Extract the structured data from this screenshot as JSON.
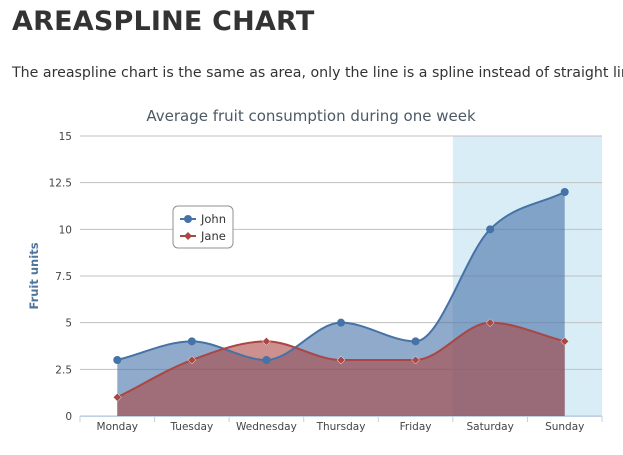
{
  "page": {
    "title": "AREASPLINE CHART",
    "description": "The areaspline chart is the same as area, only the line is a spline instead of straight lines."
  },
  "chart_data": {
    "type": "area",
    "subtype": "spline",
    "title": "Average fruit consumption during one week",
    "xlabel": "",
    "ylabel": "Fruit units",
    "categories": [
      "Monday",
      "Tuesday",
      "Wednesday",
      "Thursday",
      "Friday",
      "Saturday",
      "Sunday"
    ],
    "y_ticks": [
      0,
      2.5,
      5,
      7.5,
      10,
      12.5,
      15
    ],
    "y_tick_labels": [
      "0",
      "2.5",
      "5",
      "7.5",
      "10",
      "12.5",
      "15"
    ],
    "ylim": [
      0,
      15
    ],
    "grid": true,
    "legend_position": "top-left",
    "plot_band": {
      "from_category": "Saturday",
      "to_category": "Sunday",
      "color": "#d9edf7"
    },
    "series": [
      {
        "name": "John",
        "values": [
          3,
          4,
          3,
          5,
          4,
          10,
          12
        ],
        "color": "#4572a7",
        "marker": "circle"
      },
      {
        "name": "Jane",
        "values": [
          1,
          3,
          4,
          3,
          3,
          5,
          4
        ],
        "color": "#aa4643",
        "marker": "diamond"
      }
    ]
  }
}
